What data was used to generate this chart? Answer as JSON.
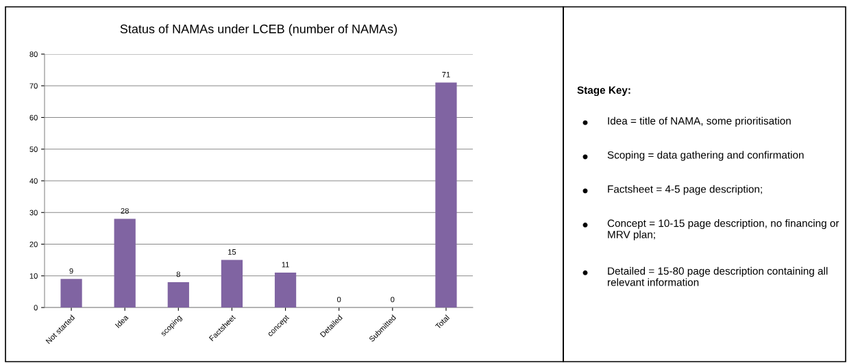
{
  "chart_data": [
    {
      "type": "bar",
      "title": "Status of NAMAs under LCEB (number of NAMAs)",
      "categories": [
        "Not started",
        "Idea",
        "scoping",
        "Factsheet",
        "concept",
        "Detailed",
        "Submitted",
        "Total"
      ],
      "values": [
        9,
        28,
        8,
        15,
        11,
        0,
        0,
        71
      ],
      "color": "#8064a2",
      "ylim": [
        0,
        80
      ],
      "yticks": [
        0,
        10,
        20,
        30,
        40,
        50,
        60,
        70,
        80
      ],
      "grid": "y",
      "data_labels": true
    },
    {
      "type": "other",
      "title": "Stage Key:",
      "annotations": [
        "Idea = title of NAMA, some prioritisation",
        "Scoping = data gathering and confirmation",
        "Factsheet = 4-5 page description;",
        "Concept = 10-15 page description, no financing or MRV plan;",
        "Detailed = 15-80 page description containing all relevant information"
      ]
    }
  ]
}
